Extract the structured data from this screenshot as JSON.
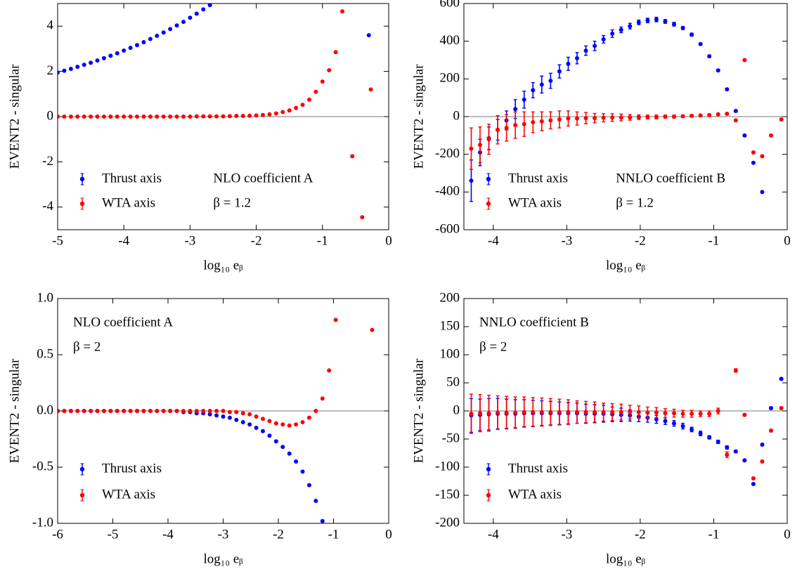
{
  "chart_data": [
    {
      "type": "scatter",
      "xlabel": "log₁₀ eᵦ",
      "ylabel": "EVENT2 - singular",
      "annotations": [
        "NLO coefficient A",
        "β = 1.2"
      ],
      "annotation_corner": "lower center",
      "legend": "lower left",
      "xlim": [
        -5,
        0
      ],
      "xticks": [
        -5,
        -4,
        -3,
        -2,
        -1,
        0
      ],
      "ylim": [
        -5,
        5
      ],
      "yticks": [
        -4,
        -2,
        0,
        2,
        4
      ],
      "series": [
        {
          "name": "Thrust axis",
          "color": "#0000ff",
          "x": [
            -5,
            -4.9,
            -4.8,
            -4.7,
            -4.6,
            -4.5,
            -4.4,
            -4.3,
            -4.2,
            -4.1,
            -4,
            -3.9,
            -3.8,
            -3.7,
            -3.6,
            -3.5,
            -3.4,
            -3.3,
            -3.2,
            -3.1,
            -3,
            -2.9,
            -2.8,
            -2.7,
            -0.3
          ],
          "values": [
            1.95,
            2.03,
            2.11,
            2.2,
            2.29,
            2.38,
            2.48,
            2.58,
            2.69,
            2.8,
            2.92,
            3.04,
            3.16,
            3.29,
            3.43,
            3.57,
            3.72,
            3.87,
            4.03,
            4.19,
            4.37,
            4.55,
            4.74,
            4.93,
            3.6
          ]
        },
        {
          "name": "WTA axis",
          "color": "#ff0000",
          "x": [
            -5,
            -4.9,
            -4.8,
            -4.7,
            -4.6,
            -4.5,
            -4.4,
            -4.3,
            -4.2,
            -4.1,
            -4,
            -3.9,
            -3.8,
            -3.7,
            -3.6,
            -3.5,
            -3.4,
            -3.3,
            -3.2,
            -3.1,
            -3,
            -2.9,
            -2.8,
            -2.7,
            -2.6,
            -2.5,
            -2.4,
            -2.3,
            -2.2,
            -2.1,
            -2,
            -1.9,
            -1.8,
            -1.7,
            -1.6,
            -1.5,
            -1.4,
            -1.3,
            -1.2,
            -1.1,
            -1,
            -0.9,
            -0.8,
            -0.7,
            -0.55,
            -0.4,
            -0.27
          ],
          "values": [
            0,
            0,
            0,
            0,
            0,
            0,
            0,
            0,
            0,
            0,
            0,
            0,
            0,
            0,
            0,
            0,
            0,
            0,
            0,
            0,
            0,
            0.01,
            0.01,
            0.01,
            0.01,
            0.01,
            0.02,
            0.03,
            0.03,
            0.04,
            0.05,
            0.07,
            0.1,
            0.14,
            0.2,
            0.27,
            0.38,
            0.52,
            0.75,
            1.1,
            1.55,
            2.05,
            2.85,
            4.65,
            -1.75,
            -4.45,
            1.2
          ]
        }
      ]
    },
    {
      "type": "scatter",
      "xlabel": "log₁₀ eᵦ",
      "ylabel": "EVENT2 - singular",
      "annotations": [
        "NNLO coefficient B",
        "β = 1.2"
      ],
      "annotation_corner": "lower center",
      "legend": "lower left",
      "xlim": [
        -4.4,
        0
      ],
      "xticks": [
        -4,
        -3,
        -2,
        -1,
        0
      ],
      "ylim": [
        -600,
        600
      ],
      "yticks": [
        -600,
        -400,
        -200,
        0,
        200,
        400,
        600
      ],
      "series": [
        {
          "name": "Thrust axis",
          "color": "#0000ff",
          "x": [
            -4.3,
            -4.18,
            -4.06,
            -3.94,
            -3.82,
            -3.7,
            -3.58,
            -3.46,
            -3.34,
            -3.22,
            -3.1,
            -2.98,
            -2.86,
            -2.74,
            -2.62,
            -2.5,
            -2.38,
            -2.26,
            -2.14,
            -2.02,
            -1.9,
            -1.78,
            -1.66,
            -1.54,
            -1.42,
            -1.3,
            -1.18,
            -1.06,
            -0.94,
            -0.82,
            -0.7,
            -0.58,
            -0.46,
            -0.34
          ],
          "values": [
            -340,
            -190,
            -115,
            -70,
            -20,
            40,
            90,
            140,
            170,
            190,
            240,
            280,
            310,
            350,
            375,
            410,
            440,
            460,
            480,
            500,
            510,
            515,
            505,
            490,
            470,
            435,
            385,
            320,
            245,
            145,
            30,
            -100,
            -245,
            -400
          ],
          "errors": [
            110,
            70,
            60,
            55,
            50,
            50,
            45,
            40,
            45,
            40,
            35,
            35,
            30,
            25,
            25,
            20,
            20,
            15,
            15,
            12,
            12,
            12,
            10,
            10,
            8,
            8,
            6,
            6,
            5,
            5,
            5,
            5,
            5,
            5
          ]
        },
        {
          "name": "WTA axis",
          "color": "#ff0000",
          "x": [
            -4.3,
            -4.18,
            -4.06,
            -3.94,
            -3.82,
            -3.7,
            -3.58,
            -3.46,
            -3.34,
            -3.22,
            -3.1,
            -2.98,
            -2.86,
            -2.74,
            -2.62,
            -2.5,
            -2.38,
            -2.26,
            -2.14,
            -2.02,
            -1.9,
            -1.78,
            -1.66,
            -1.54,
            -1.42,
            -1.3,
            -1.18,
            -1.06,
            -0.94,
            -0.82,
            -0.7,
            -0.58,
            -0.46,
            -0.34,
            -0.22,
            -0.08
          ],
          "values": [
            -170,
            -150,
            -120,
            -70,
            -60,
            -45,
            -40,
            -30,
            -25,
            -20,
            -15,
            -10,
            -10,
            -8,
            -8,
            -6,
            -5,
            -5,
            -4,
            -3,
            -2,
            -2,
            0,
            0,
            2,
            4,
            6,
            8,
            12,
            15,
            -20,
            300,
            -190,
            -210,
            -100,
            -15
          ],
          "errors": [
            110,
            95,
            80,
            75,
            70,
            70,
            65,
            55,
            50,
            45,
            45,
            40,
            35,
            30,
            25,
            22,
            20,
            18,
            15,
            12,
            10,
            10,
            8,
            8,
            6,
            6,
            5,
            5,
            5,
            5,
            5,
            5,
            5,
            5,
            5,
            5
          ]
        }
      ]
    },
    {
      "type": "scatter",
      "xlabel": "log₁₀ eᵦ",
      "ylabel": "EVENT2 - singular",
      "annotations": [
        "NLO coefficient A",
        "β = 2"
      ],
      "annotation_corner": "upper left",
      "legend": "lower left",
      "xlim": [
        -6,
        0
      ],
      "xticks": [
        -6,
        -5,
        -4,
        -3,
        -2,
        -1,
        0
      ],
      "ylim": [
        -1,
        1
      ],
      "yticks": [
        {
          "value": -1,
          "label": "-1.0"
        },
        -0.5,
        {
          "value": 0,
          "label": "0.0"
        },
        0.5,
        {
          "value": 1,
          "label": "1.0"
        }
      ],
      "series": [
        {
          "name": "Thrust axis",
          "color": "#0000ff",
          "x": [
            -6,
            -5.88,
            -5.76,
            -5.64,
            -5.52,
            -5.4,
            -5.28,
            -5.16,
            -5.04,
            -4.92,
            -4.8,
            -4.68,
            -4.56,
            -4.44,
            -4.32,
            -4.2,
            -4.08,
            -3.96,
            -3.84,
            -3.72,
            -3.6,
            -3.48,
            -3.36,
            -3.24,
            -3.12,
            -3,
            -2.88,
            -2.76,
            -2.64,
            -2.52,
            -2.4,
            -2.28,
            -2.16,
            -2.04,
            -1.92,
            -1.8,
            -1.68,
            -1.56,
            -1.44,
            -1.32,
            -1.2
          ],
          "values": [
            0,
            0,
            0,
            0,
            0,
            0,
            0,
            0,
            0,
            0,
            0,
            0,
            0,
            0,
            0,
            0,
            0,
            0,
            0,
            -0.01,
            -0.01,
            -0.02,
            -0.02,
            -0.03,
            -0.04,
            -0.05,
            -0.06,
            -0.08,
            -0.1,
            -0.12,
            -0.15,
            -0.18,
            -0.22,
            -0.27,
            -0.32,
            -0.38,
            -0.45,
            -0.54,
            -0.66,
            -0.8,
            -0.98
          ]
        },
        {
          "name": "WTA axis",
          "color": "#ff0000",
          "x": [
            -6,
            -5.88,
            -5.76,
            -5.64,
            -5.52,
            -5.4,
            -5.28,
            -5.16,
            -5.04,
            -4.92,
            -4.8,
            -4.68,
            -4.56,
            -4.44,
            -4.32,
            -4.2,
            -4.08,
            -3.96,
            -3.84,
            -3.72,
            -3.6,
            -3.48,
            -3.36,
            -3.24,
            -3.12,
            -3,
            -2.88,
            -2.76,
            -2.64,
            -2.52,
            -2.4,
            -2.28,
            -2.16,
            -2.04,
            -1.92,
            -1.8,
            -1.68,
            -1.56,
            -1.44,
            -1.32,
            -1.2,
            -1.08,
            -0.96,
            -0.3
          ],
          "values": [
            0,
            0,
            0,
            0,
            0,
            0,
            0,
            0,
            0,
            0,
            0,
            0,
            0,
            0,
            0,
            0,
            0,
            0,
            0,
            0,
            0,
            0,
            0,
            0,
            0,
            0,
            -0.01,
            -0.01,
            -0.02,
            -0.03,
            -0.05,
            -0.07,
            -0.09,
            -0.11,
            -0.12,
            -0.13,
            -0.12,
            -0.1,
            -0.06,
            0,
            0.11,
            0.36,
            0.81,
            0.72
          ]
        }
      ]
    },
    {
      "type": "scatter",
      "xlabel": "log₁₀ eᵦ",
      "ylabel": "EVENT2 - singular",
      "annotations": [
        "NNLO coefficient B",
        "β = 2"
      ],
      "annotation_corner": "upper left",
      "legend": "lower left",
      "xlim": [
        -4.4,
        0
      ],
      "xticks": [
        -4,
        -3,
        -2,
        -1,
        0
      ],
      "ylim": [
        -200,
        200
      ],
      "yticks": [
        -200,
        -150,
        -100,
        -50,
        0,
        50,
        100,
        150,
        200
      ],
      "series": [
        {
          "name": "Thrust axis",
          "color": "#0000ff",
          "x": [
            -4.3,
            -4.18,
            -4.06,
            -3.94,
            -3.82,
            -3.7,
            -3.58,
            -3.46,
            -3.34,
            -3.22,
            -3.1,
            -2.98,
            -2.86,
            -2.74,
            -2.62,
            -2.5,
            -2.38,
            -2.26,
            -2.14,
            -2.02,
            -1.9,
            -1.78,
            -1.66,
            -1.54,
            -1.42,
            -1.3,
            -1.18,
            -1.06,
            -0.94,
            -0.82,
            -0.7,
            -0.58,
            -0.46,
            -0.34,
            -0.22,
            -0.08
          ],
          "values": [
            -8,
            -7,
            -6,
            -5,
            -5,
            -5,
            -4,
            -4,
            -4,
            -4,
            -4,
            -4,
            -4,
            -5,
            -5,
            -5,
            -6,
            -7,
            -8,
            -10,
            -12,
            -15,
            -18,
            -22,
            -27,
            -33,
            -40,
            -47,
            -55,
            -65,
            -72,
            -88,
            -130,
            -60,
            5,
            57
          ],
          "errors": [
            30,
            28,
            28,
            27,
            26,
            25,
            24,
            23,
            22,
            21,
            20,
            19,
            18,
            17,
            16,
            15,
            13,
            12,
            10,
            9,
            8,
            7,
            6,
            5,
            5,
            4,
            4,
            3,
            3,
            3,
            2,
            2,
            2,
            2,
            2,
            2
          ]
        },
        {
          "name": "WTA axis",
          "color": "#ff0000",
          "x": [
            -4.3,
            -4.18,
            -4.06,
            -3.94,
            -3.82,
            -3.7,
            -3.58,
            -3.46,
            -3.34,
            -3.22,
            -3.1,
            -2.98,
            -2.86,
            -2.74,
            -2.62,
            -2.5,
            -2.38,
            -2.26,
            -2.14,
            -2.02,
            -1.9,
            -1.78,
            -1.66,
            -1.54,
            -1.42,
            -1.3,
            -1.18,
            -1.06,
            -0.94,
            -0.82,
            -0.7,
            -0.58,
            -0.46,
            -0.34,
            -0.22,
            -0.08
          ],
          "values": [
            -5,
            -4,
            -4,
            -3,
            -3,
            -3,
            -2,
            -2,
            -2,
            -2,
            -2,
            -2,
            -2,
            -2,
            -2,
            -2,
            -2,
            -2,
            -2,
            -2,
            -3,
            -3,
            -4,
            -4,
            -5,
            -5,
            -5,
            -5,
            0,
            -78,
            72,
            -7,
            -120,
            -90,
            -35,
            5
          ],
          "errors": [
            35,
            33,
            32,
            30,
            29,
            28,
            27,
            26,
            25,
            24,
            23,
            22,
            20,
            19,
            18,
            16,
            15,
            14,
            12,
            11,
            10,
            9,
            8,
            7,
            6,
            6,
            5,
            5,
            5,
            5,
            3,
            2,
            2,
            2,
            2,
            2
          ]
        }
      ]
    }
  ]
}
